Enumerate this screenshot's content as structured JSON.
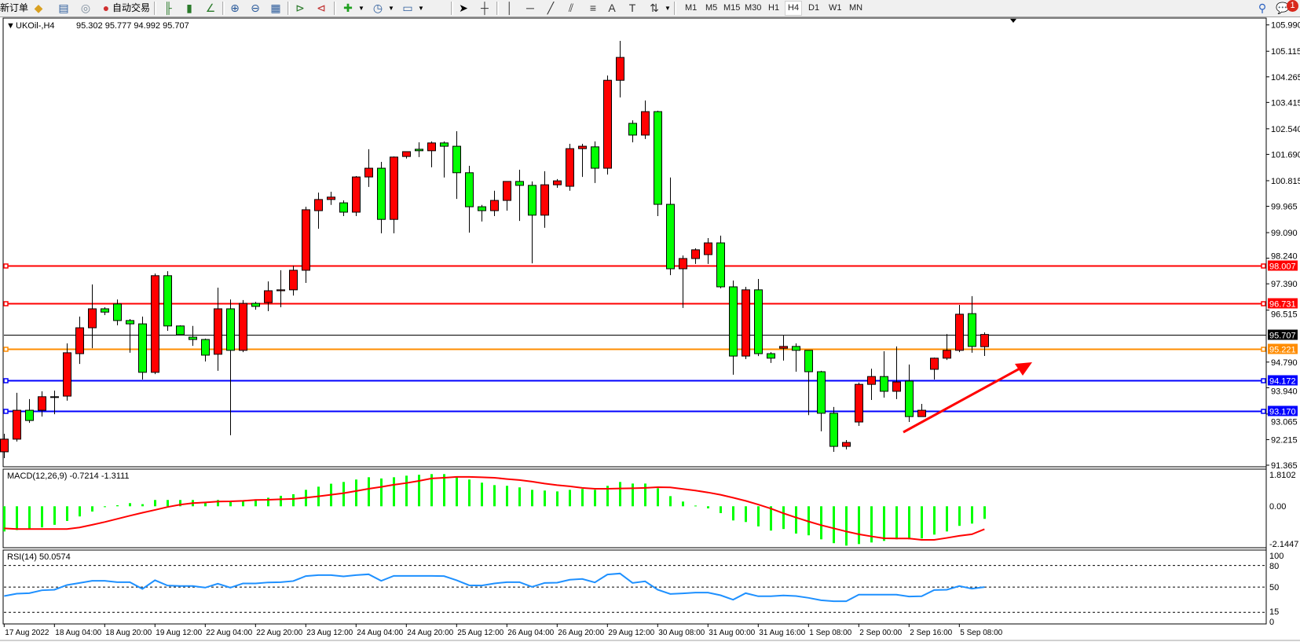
{
  "toolbar": {
    "new_order": "新订单",
    "auto_trading": "自动交易",
    "icons": [
      "new-order-icon",
      "market-watch-icon",
      "navigator-icon",
      "signals-icon",
      "auto-trading-icon",
      "bar-chart-icon",
      "candlestick-icon",
      "line-chart-icon",
      "zoom-in-icon",
      "zoom-out-icon",
      "tile-windows-icon",
      "auto-scroll-icon",
      "chart-shift-icon",
      "indicators-icon",
      "periods-icon",
      "templates-icon",
      "cursor-icon",
      "crosshair-icon",
      "vertical-line-icon",
      "horizontal-line-icon",
      "trendline-icon",
      "equidistant-channel-icon",
      "fibonacci-icon",
      "text-icon",
      "text-label-icon",
      "arrows-icon",
      "search-icon",
      "chat-icon"
    ],
    "timeframes": [
      "M1",
      "M5",
      "M15",
      "M30",
      "H1",
      "H4",
      "D1",
      "W1",
      "MN"
    ],
    "selected_timeframe": "H4",
    "notification_count": "1"
  },
  "chart_header": {
    "symbol": "UKOil-,H4",
    "ohlc": "95.302 95.777 94.992 95.707"
  },
  "colors": {
    "bull_candle": "#ff0000",
    "bear_candle": "#00ff00",
    "macd_histogram": "#00ff00",
    "macd_signal": "#ff0000",
    "rsi_line": "#1e90ff",
    "resistance": "#ff0000",
    "pivot": "#ff8c00",
    "support": "#0000ff",
    "bid": "#000000"
  },
  "chart_data": [
    {
      "type": "candlestick",
      "title": "UKOil-,H4",
      "ohlc_order": [
        "open",
        "high",
        "low",
        "close"
      ],
      "ylim": [
        91.365,
        105.99
      ],
      "y_ticks": [
        "105.990",
        "105.115",
        "104.265",
        "103.415",
        "102.540",
        "101.690",
        "100.815",
        "99.965",
        "99.090",
        "98.240",
        "97.390",
        "96.515",
        "94.790",
        "93.940",
        "93.065",
        "92.215",
        "91.365"
      ],
      "x_tick_every": 4,
      "x_ticks": [
        "17 Aug 2022",
        "18 Aug 04:00",
        "18 Aug 20:00",
        "19 Aug 12:00",
        "22 Aug 04:00",
        "22 Aug 20:00",
        "23 Aug 12:00",
        "24 Aug 04:00",
        "24 Aug 20:00",
        "25 Aug 12:00",
        "26 Aug 04:00",
        "26 Aug 20:00",
        "29 Aug 12:00",
        "30 Aug 08:00",
        "31 Aug 00:00",
        "31 Aug 16:00",
        "1 Sep 08:00",
        "2 Sep 00:00",
        "2 Sep 16:00",
        "5 Sep 08:00"
      ],
      "candles": [
        [
          91.81,
          92.41,
          91.6,
          92.23
        ],
        [
          92.23,
          93.77,
          92.15,
          93.19
        ],
        [
          93.19,
          93.56,
          92.77,
          92.85
        ],
        [
          93.19,
          93.82,
          92.98,
          93.64
        ],
        [
          93.64,
          93.84,
          93.06,
          93.62
        ],
        [
          93.66,
          95.41,
          93.51,
          95.1
        ],
        [
          95.07,
          96.3,
          94.73,
          95.93
        ],
        [
          95.93,
          97.37,
          95.25,
          96.56
        ],
        [
          96.56,
          96.61,
          96.35,
          96.45
        ],
        [
          96.72,
          96.87,
          96.01,
          96.17
        ],
        [
          96.17,
          96.22,
          95.1,
          96.06
        ],
        [
          96.06,
          96.3,
          94.21,
          94.45
        ],
        [
          94.45,
          97.73,
          94.39,
          97.66
        ],
        [
          97.66,
          97.81,
          95.83,
          95.99
        ],
        [
          95.99,
          96.01,
          95.7,
          95.7
        ],
        [
          95.62,
          95.99,
          95.33,
          95.54
        ],
        [
          95.54,
          95.57,
          94.81,
          95.02
        ],
        [
          95.05,
          97.26,
          94.5,
          96.56
        ],
        [
          96.56,
          96.87,
          92.36,
          95.18
        ],
        [
          95.18,
          96.85,
          95.12,
          96.74
        ],
        [
          96.74,
          96.79,
          96.53,
          96.64
        ],
        [
          96.77,
          97.47,
          96.48,
          97.16
        ],
        [
          97.16,
          97.84,
          96.61,
          97.19
        ],
        [
          97.19,
          97.99,
          97.0,
          97.84
        ],
        [
          97.84,
          99.95,
          97.42,
          99.85
        ],
        [
          99.82,
          100.42,
          99.22,
          100.19
        ],
        [
          100.19,
          100.45,
          100.01,
          100.27
        ],
        [
          100.08,
          100.16,
          99.64,
          99.77
        ],
        [
          99.77,
          100.97,
          99.64,
          100.94
        ],
        [
          100.94,
          101.86,
          100.61,
          101.23
        ],
        [
          101.23,
          101.44,
          99.07,
          99.53
        ],
        [
          99.53,
          101.62,
          99.07,
          101.6
        ],
        [
          101.62,
          101.78,
          101.55,
          101.78
        ],
        [
          101.86,
          102.09,
          101.6,
          101.81
        ],
        [
          101.81,
          102.12,
          101.26,
          102.07
        ],
        [
          102.07,
          102.12,
          100.92,
          101.96
        ],
        [
          101.96,
          102.46,
          100.21,
          101.08
        ],
        [
          101.08,
          101.31,
          99.09,
          99.95
        ],
        [
          99.95,
          100.01,
          99.46,
          99.82
        ],
        [
          99.82,
          100.48,
          99.64,
          100.16
        ],
        [
          100.16,
          100.79,
          99.82,
          100.79
        ],
        [
          100.79,
          101.18,
          99.48,
          100.66
        ],
        [
          100.66,
          100.79,
          98.07,
          99.67
        ],
        [
          99.67,
          101.13,
          99.25,
          100.68
        ],
        [
          100.68,
          100.87,
          100.58,
          100.81
        ],
        [
          100.63,
          102.04,
          100.48,
          101.88
        ],
        [
          101.88,
          102.04,
          100.94,
          101.96
        ],
        [
          101.94,
          102.12,
          100.74,
          101.23
        ],
        [
          101.23,
          104.31,
          101.02,
          104.15
        ],
        [
          104.15,
          105.46,
          103.58,
          104.91
        ],
        [
          102.72,
          102.82,
          102.09,
          102.33
        ],
        [
          102.33,
          103.48,
          102.2,
          103.11
        ],
        [
          103.11,
          103.14,
          99.64,
          100.03
        ],
        [
          100.03,
          100.92,
          97.68,
          97.89
        ],
        [
          97.89,
          98.33,
          96.59,
          98.23
        ],
        [
          98.23,
          98.57,
          98.05,
          98.52
        ],
        [
          98.36,
          98.91,
          98.05,
          98.75
        ],
        [
          98.75,
          98.99,
          97.24,
          97.29
        ],
        [
          97.29,
          97.5,
          94.37,
          94.99
        ],
        [
          94.99,
          97.29,
          94.89,
          97.19
        ],
        [
          97.19,
          97.55,
          94.99,
          95.07
        ],
        [
          95.07,
          95.12,
          94.76,
          94.92
        ],
        [
          95.25,
          95.67,
          94.84,
          95.31
        ],
        [
          95.31,
          95.41,
          94.47,
          95.18
        ],
        [
          95.18,
          95.18,
          93.03,
          94.47
        ],
        [
          94.47,
          94.5,
          92.49,
          93.09
        ],
        [
          93.09,
          93.3,
          91.81,
          91.99
        ],
        [
          91.99,
          92.2,
          91.89,
          92.12
        ],
        [
          92.8,
          94.11,
          92.67,
          94.05
        ],
        [
          94.05,
          94.57,
          93.53,
          94.31
        ],
        [
          94.31,
          95.15,
          93.61,
          93.82
        ],
        [
          93.82,
          95.31,
          93.56,
          94.13
        ],
        [
          94.16,
          94.71,
          92.8,
          92.98
        ],
        [
          92.98,
          93.4,
          92.98,
          93.19
        ],
        [
          94.55,
          94.94,
          94.21,
          94.92
        ],
        [
          94.92,
          95.72,
          94.86,
          95.18
        ],
        [
          95.18,
          96.69,
          95.12,
          96.38
        ],
        [
          96.4,
          96.98,
          95.1,
          95.31
        ],
        [
          95.302,
          95.777,
          94.992,
          95.707
        ]
      ],
      "horizontal_lines": [
        {
          "value": 98.007,
          "label": "98.007",
          "color": "#ff0000"
        },
        {
          "value": 96.731,
          "label": "96.731",
          "color": "#ff0000"
        },
        {
          "value": 95.707,
          "label": "95.707",
          "color": "#000000",
          "bid": true
        },
        {
          "value": 95.221,
          "label": "95.221",
          "color": "#ff8c00"
        },
        {
          "value": 94.172,
          "label": "94.172",
          "color": "#0000ff"
        },
        {
          "value": 93.17,
          "label": "93.170",
          "color": "#0000ff"
        }
      ],
      "annotation": {
        "type": "arrow",
        "color": "#ff0000",
        "direction": "up-right"
      }
    },
    {
      "type": "bar",
      "title": "MACD(12,26,9) -0.7214 -1.3111",
      "ylim": [
        -2.1447,
        1.8102
      ],
      "y_ticks": [
        "1.8102",
        "0.00",
        "-2.1447"
      ],
      "histogram": [
        -1.44,
        -1.36,
        -1.27,
        -1.21,
        -1.06,
        -0.84,
        -0.58,
        -0.3,
        -0.05,
        0.06,
        0.18,
        0.12,
        0.36,
        0.36,
        0.36,
        0.36,
        0.21,
        0.36,
        0.24,
        0.31,
        0.4,
        0.49,
        0.6,
        0.69,
        0.94,
        1.12,
        1.29,
        1.39,
        1.53,
        1.66,
        1.59,
        1.66,
        1.75,
        1.8,
        1.84,
        1.84,
        1.68,
        1.53,
        1.35,
        1.21,
        1.17,
        1.08,
        0.94,
        0.9,
        0.85,
        0.94,
        0.99,
        0.94,
        1.17,
        1.39,
        1.3,
        1.3,
        1.03,
        0.58,
        0.27,
        0.04,
        -0.12,
        -0.39,
        -0.81,
        -0.9,
        -1.15,
        -1.39,
        -1.3,
        -1.56,
        -1.66,
        -1.89,
        -2.11,
        -2.25,
        -2.16,
        -2.07,
        -1.98,
        -1.89,
        -1.89,
        -1.84,
        -1.62,
        -1.44,
        -1.12,
        -0.99,
        -0.72
      ],
      "signal": [
        -1.26,
        -1.3,
        -1.3,
        -1.3,
        -1.3,
        -1.3,
        -1.21,
        -1.06,
        -0.9,
        -0.72,
        -0.54,
        -0.37,
        -0.21,
        -0.04,
        0.09,
        0.18,
        0.22,
        0.27,
        0.28,
        0.31,
        0.36,
        0.37,
        0.4,
        0.42,
        0.49,
        0.57,
        0.66,
        0.75,
        0.87,
        1.0,
        1.11,
        1.23,
        1.33,
        1.45,
        1.59,
        1.63,
        1.68,
        1.68,
        1.66,
        1.63,
        1.56,
        1.5,
        1.41,
        1.3,
        1.21,
        1.14,
        1.05,
        1.0,
        1.0,
        1.02,
        1.03,
        1.05,
        1.09,
        1.08,
        0.99,
        0.9,
        0.79,
        0.66,
        0.49,
        0.31,
        0.1,
        -0.13,
        -0.4,
        -0.64,
        -0.87,
        -1.08,
        -1.26,
        -1.44,
        -1.6,
        -1.72,
        -1.83,
        -1.84,
        -1.84,
        -1.92,
        -1.92,
        -1.81,
        -1.69,
        -1.6,
        -1.31
      ]
    },
    {
      "type": "line",
      "title": "RSI(14) 50.0574",
      "ylim": [
        0,
        100
      ],
      "y_ticks": [
        "100",
        "80",
        "50",
        "15",
        "0"
      ],
      "levels": [
        80,
        50,
        15
      ],
      "values": [
        37.6,
        40.9,
        41.6,
        45.6,
        46.4,
        52.9,
        55.8,
        58.7,
        58.7,
        56.9,
        56.9,
        47.5,
        59.5,
        52.2,
        51.5,
        51.5,
        49.3,
        54.7,
        49.3,
        55.1,
        55.1,
        56.5,
        56.9,
        58.4,
        65.3,
        66.7,
        66.7,
        64.9,
        66.7,
        67.8,
        58.7,
        65.6,
        65.6,
        65.6,
        65.6,
        65.3,
        59.5,
        52.5,
        52.2,
        55.1,
        56.9,
        56.9,
        50.4,
        55.8,
        56.2,
        60.2,
        61.3,
        56.5,
        67.5,
        68.9,
        55.8,
        58.0,
        46.4,
        40.5,
        41.3,
        42.4,
        42.4,
        38.7,
        32.5,
        41.6,
        37.3,
        37.3,
        38.4,
        37.6,
        35.1,
        31.8,
        30.4,
        30.4,
        39.5,
        39.5,
        39.5,
        39.5,
        36.9,
        37.3,
        46.0,
        46.4,
        51.5,
        47.8,
        50.06
      ]
    }
  ]
}
